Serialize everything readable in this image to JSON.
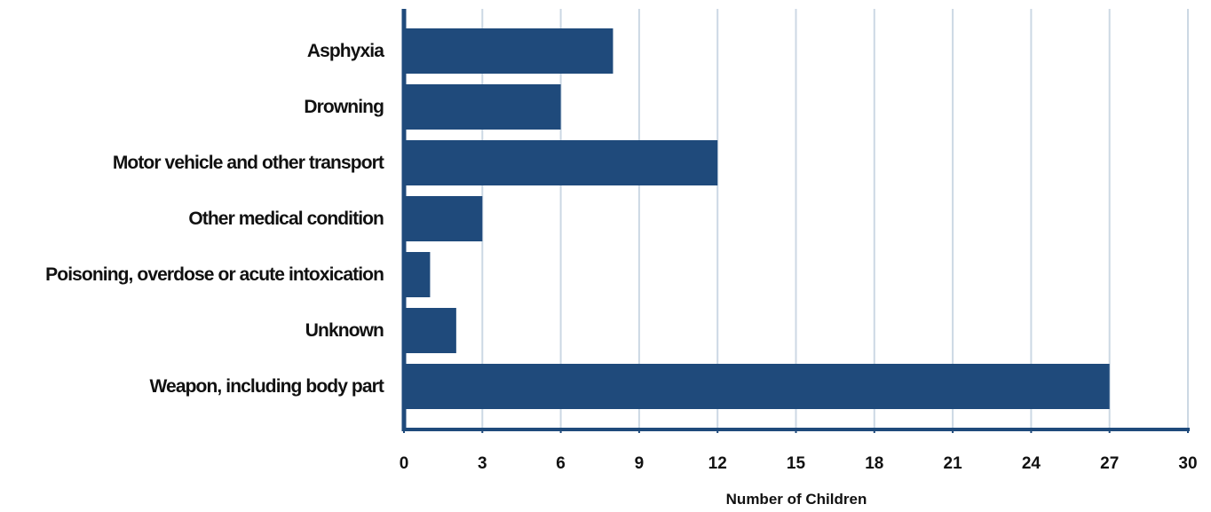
{
  "chart_data": {
    "type": "bar",
    "orientation": "horizontal",
    "categories": [
      "Asphyxia",
      "Drowning",
      "Motor vehicle and other transport",
      "Other medical condition",
      "Poisoning, overdose or acute intoxication",
      "Unknown",
      "Weapon, including body part"
    ],
    "values": [
      8,
      6,
      12,
      3,
      1,
      2,
      27
    ],
    "xlabel": "Number of Children",
    "ylabel": "",
    "title": "",
    "xlim": [
      0,
      30
    ],
    "xticks": [
      0,
      3,
      6,
      9,
      12,
      15,
      18,
      21,
      24,
      27,
      30
    ],
    "grid": "vertical",
    "legend": "none",
    "colors": {
      "bar": "#1f4a7b",
      "axis": "#1f4a7b",
      "grid": "#ccd8e4"
    }
  }
}
